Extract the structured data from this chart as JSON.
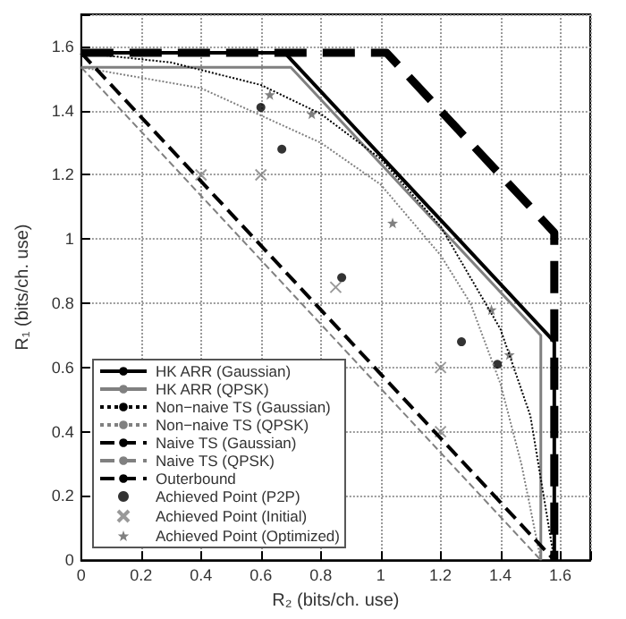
{
  "chart_data": {
    "type": "line",
    "xlabel": "R₂ (bits/ch. use)",
    "ylabel": "R₁ (bits/ch. use)",
    "xlim": [
      0,
      1.7
    ],
    "ylim": [
      0,
      1.7
    ],
    "xticks": [
      0,
      0.2,
      0.4,
      0.6,
      0.8,
      1,
      1.2,
      1.4,
      1.6
    ],
    "yticks": [
      0,
      0.2,
      0.4,
      0.6,
      0.8,
      1,
      1.2,
      1.4,
      1.6
    ],
    "grid": true,
    "legend": "bottom left",
    "series": [
      {
        "name": "HK ARR (Gaussian)",
        "color": "#000000",
        "line_style": "solid",
        "marker": "none",
        "x": [
          0,
          0.68,
          1.58,
          1.58
        ],
        "values": [
          1.58,
          1.58,
          0.68,
          0
        ]
      },
      {
        "name": "HK ARR (QPSK)",
        "color": "#808080",
        "line_style": "solid",
        "marker": "none",
        "x": [
          0,
          0.7,
          1.535,
          1.535
        ],
        "values": [
          1.535,
          1.535,
          0.7,
          0
        ]
      },
      {
        "name": "Non−naive TS (Gaussian)",
        "color": "#000000",
        "line_style": "dotted",
        "marker": "none",
        "x": [
          0,
          0.3,
          0.6,
          0.8,
          1.0,
          1.2,
          1.4,
          1.5,
          1.58
        ],
        "values": [
          1.58,
          1.55,
          1.48,
          1.39,
          1.25,
          1.04,
          0.72,
          0.45,
          0
        ]
      },
      {
        "name": "Non−naive TS (QPSK)",
        "color": "#808080",
        "line_style": "dotted",
        "marker": "none",
        "x": [
          0,
          0.4,
          0.8,
          1.0,
          1.2,
          1.3,
          1.4,
          1.47,
          1.535
        ],
        "values": [
          1.535,
          1.47,
          1.3,
          1.17,
          0.95,
          0.8,
          0.55,
          0.3,
          0
        ]
      },
      {
        "name": "Naive TS (Gaussian)",
        "color": "#000000",
        "line_style": "dashed",
        "marker": "none",
        "x": [
          0,
          1.58
        ],
        "values": [
          1.58,
          0
        ]
      },
      {
        "name": "Naive TS (QPSK)",
        "color": "#808080",
        "line_style": "dashed",
        "marker": "none",
        "x": [
          0,
          1.535
        ],
        "values": [
          1.535,
          0
        ]
      },
      {
        "name": "Outerbound",
        "color": "#000000",
        "line_style": "dashed",
        "marker": "none",
        "x": [
          0,
          1.02,
          1.58,
          1.58
        ],
        "values": [
          1.58,
          1.58,
          1.02,
          0
        ]
      },
      {
        "name": "Achieved Point (P2P)",
        "type": "scatter",
        "color": "#000000",
        "marker": "circle",
        "x": [
          0.6,
          0.67,
          0.87,
          1.27,
          1.39
        ],
        "values": [
          1.41,
          1.28,
          0.88,
          0.68,
          0.61
        ]
      },
      {
        "name": "Achieved Point (Initial)",
        "type": "scatter",
        "color": "#808080",
        "marker": "cross",
        "x": [
          0.4,
          0.6,
          0.85,
          1.2,
          1.2
        ],
        "values": [
          1.2,
          1.2,
          0.85,
          0.6,
          0.4
        ]
      },
      {
        "name": "Achieved Point (Optimized)",
        "type": "scatter",
        "color": "#606060",
        "marker": "star",
        "x": [
          0.63,
          0.77,
          1.04,
          1.37,
          1.43
        ],
        "values": [
          1.45,
          1.39,
          1.05,
          0.78,
          0.64
        ]
      }
    ]
  }
}
